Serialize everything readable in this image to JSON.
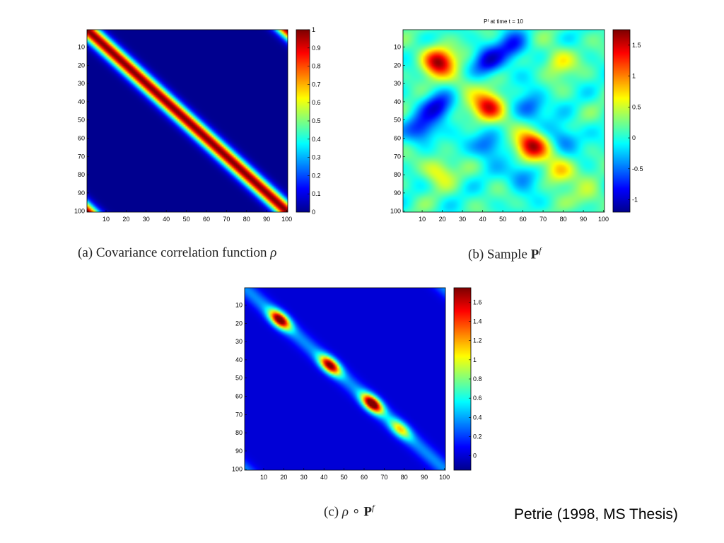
{
  "colors": {
    "jet_stops": [
      "#00008f",
      "#0000ff",
      "#00ffff",
      "#ffff00",
      "#ff0000",
      "#800000"
    ],
    "background": "#ffffff"
  },
  "credit": "Petrie (1998, MS Thesis)",
  "chart_data": [
    {
      "type": "heatmap",
      "id": "a",
      "title": "",
      "caption": {
        "prefix": "(a)",
        "text": "Covariance correlation function",
        "symbol": "ρ"
      },
      "pattern": "periodic_correlation_band",
      "x_ticks": [
        10,
        20,
        30,
        40,
        50,
        60,
        70,
        80,
        90,
        100
      ],
      "y_ticks": [
        10,
        20,
        30,
        40,
        50,
        60,
        70,
        80,
        90,
        100
      ],
      "xlim": [
        1,
        100
      ],
      "ylim": [
        1,
        100
      ],
      "colorbar": {
        "range": [
          0,
          1
        ],
        "ticks": [
          "0",
          "0.1",
          "0.2",
          "0.3",
          "0.4",
          "0.5",
          "0.6",
          "0.7",
          "0.8",
          "0.9",
          "1"
        ]
      }
    },
    {
      "type": "heatmap",
      "id": "b",
      "title": "Pᶠ at time t = 10",
      "caption": {
        "prefix": "(b)",
        "text": "Sample",
        "symbol": "P",
        "sup": "f"
      },
      "pattern": "sample_covariance_field",
      "peaks": [
        {
          "x": 18,
          "y": 18,
          "v": 1.6
        },
        {
          "x": 43,
          "y": 43,
          "v": 1.5
        },
        {
          "x": 64,
          "y": 64,
          "v": 1.7
        },
        {
          "x": 78,
          "y": 78,
          "v": 0.8
        },
        {
          "x": 78,
          "y": 18,
          "v": 0.6
        },
        {
          "x": 18,
          "y": 78,
          "v": 0.6
        },
        {
          "x": 43,
          "y": 18,
          "v": -0.9
        },
        {
          "x": 18,
          "y": 43,
          "v": -0.9
        },
        {
          "x": 43,
          "y": 64,
          "v": -0.7
        },
        {
          "x": 64,
          "y": 43,
          "v": -0.7
        },
        {
          "x": 10,
          "y": 55,
          "v": -0.8
        },
        {
          "x": 55,
          "y": 10,
          "v": -0.8
        },
        {
          "x": 80,
          "y": 60,
          "v": -0.6
        },
        {
          "x": 60,
          "y": 80,
          "v": -0.6
        },
        {
          "x": 30,
          "y": 30,
          "v": 0.3
        },
        {
          "x": 93,
          "y": 93,
          "v": 0.4
        }
      ],
      "x_ticks": [
        10,
        20,
        30,
        40,
        50,
        60,
        70,
        80,
        90,
        100
      ],
      "y_ticks": [
        10,
        20,
        30,
        40,
        50,
        60,
        70,
        80,
        90,
        100
      ],
      "xlim": [
        1,
        100
      ],
      "ylim": [
        1,
        100
      ],
      "colorbar": {
        "range": [
          -1.2,
          1.75
        ],
        "ticks": [
          "-1",
          "-0.5",
          "0",
          "0.5",
          "1",
          "1.5"
        ]
      }
    },
    {
      "type": "heatmap",
      "id": "c",
      "title": "",
      "caption": {
        "prefix": "(c)",
        "symbol": "ρ",
        "operator": "∘",
        "symbol2": "P",
        "sup": "f"
      },
      "pattern": "localized_covariance",
      "peaks": [
        {
          "x": 18,
          "y": 18,
          "v": 1.6
        },
        {
          "x": 43,
          "y": 43,
          "v": 1.5
        },
        {
          "x": 64,
          "y": 64,
          "v": 1.7
        },
        {
          "x": 78,
          "y": 78,
          "v": 0.8
        }
      ],
      "x_ticks": [
        10,
        20,
        30,
        40,
        50,
        60,
        70,
        80,
        90,
        100
      ],
      "y_ticks": [
        10,
        20,
        30,
        40,
        50,
        60,
        70,
        80,
        90,
        100
      ],
      "xlim": [
        1,
        100
      ],
      "ylim": [
        1,
        100
      ],
      "colorbar": {
        "range": [
          -0.15,
          1.75
        ],
        "ticks": [
          "0",
          "0.2",
          "0.4",
          "0.6",
          "0.8",
          "1",
          "1.2",
          "1.4",
          "1.6"
        ]
      }
    }
  ]
}
